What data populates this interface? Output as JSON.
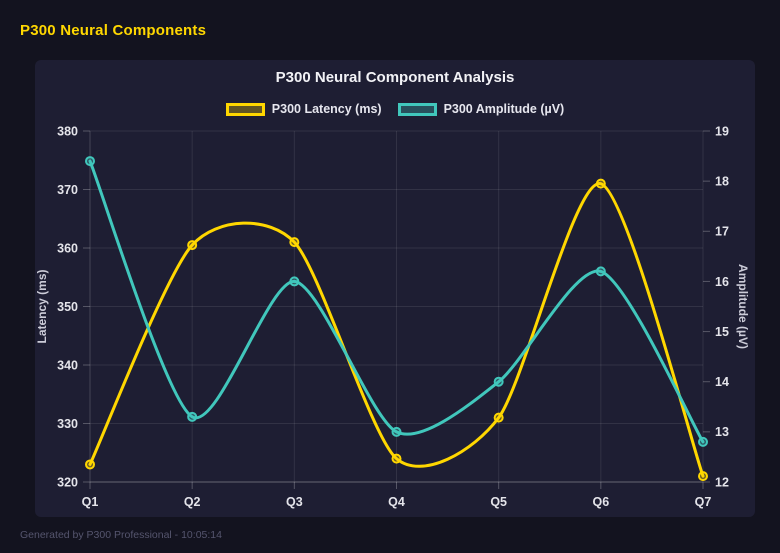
{
  "page": {
    "title": "P300 Neural Components",
    "footer": "Generated by P300 Professional - 10:05:14",
    "background": "#13131f",
    "card_background": "#1e1e33",
    "title_color": "#ffd700"
  },
  "chart_data": {
    "type": "line",
    "title": "P300 Neural Component Analysis",
    "categories": [
      "Q1",
      "Q2",
      "Q3",
      "Q4",
      "Q5",
      "Q6",
      "Q7"
    ],
    "series": [
      {
        "name": "P300 Latency (ms)",
        "axis": "left",
        "color": "#ffd700",
        "values": [
          323,
          360.5,
          361,
          324,
          331,
          371,
          321
        ]
      },
      {
        "name": "P300 Amplitude (µV)",
        "axis": "right",
        "color": "#41c7bc",
        "values": [
          18.4,
          13.3,
          16,
          13,
          14,
          16.2,
          12.8
        ]
      }
    ],
    "left_axis": {
      "label": "Latency (ms)",
      "min": 320,
      "max": 380,
      "step": 10
    },
    "right_axis": {
      "label": "Amplitude (µV)",
      "min": 12,
      "max": 19,
      "step": 1
    },
    "grid": true,
    "smooth": true,
    "legend_position": "top",
    "grid_color": "rgba(255,255,255,0.09)",
    "border_color": "rgba(255,255,255,0.25)"
  }
}
